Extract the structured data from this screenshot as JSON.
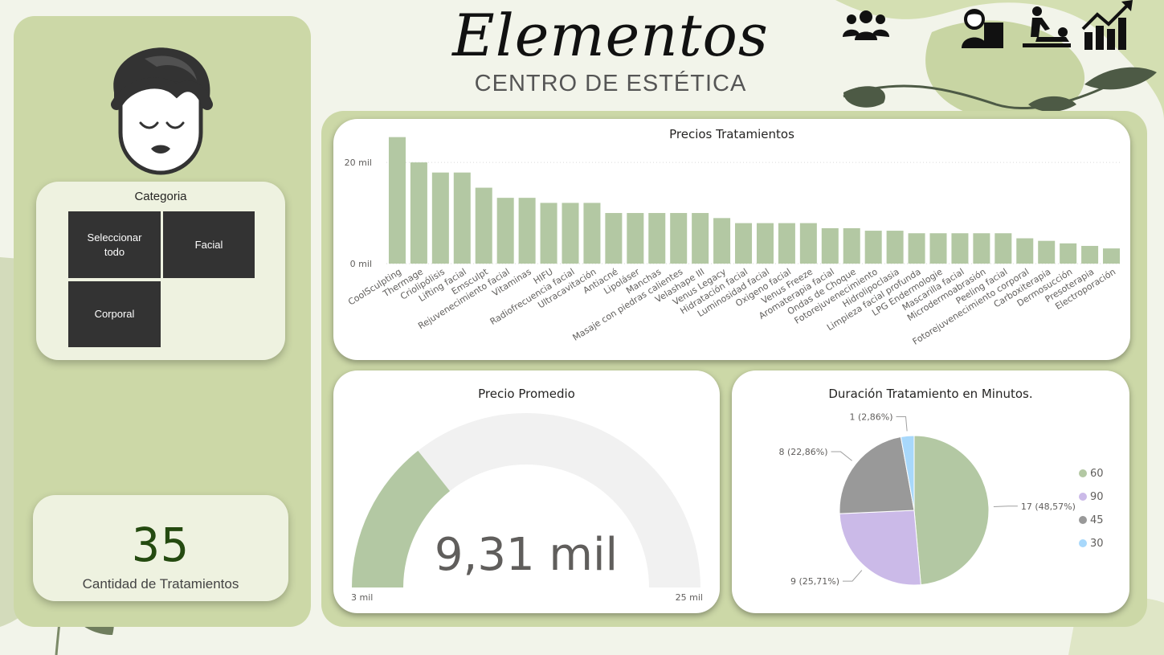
{
  "brand": {
    "name": "Elementos",
    "subtitle": "CENTRO DE ESTÉTICA"
  },
  "slicer": {
    "title": "Categoria",
    "options": [
      "Seleccionar todo",
      "Facial",
      "Corporal"
    ]
  },
  "kpi": {
    "value": "35",
    "label": "Cantidad de Tratamientos"
  },
  "icons": [
    "group-icon",
    "receptionist-icon",
    "massage-icon",
    "growth-chart-icon"
  ],
  "colors": {
    "panel": "#ccd8a7",
    "bar": "#b3c8a3",
    "dark_button": "#333333",
    "kpi_text": "#244a10"
  },
  "chart_data": [
    {
      "type": "bar",
      "title": "Precios Tratamientos",
      "categories": [
        "CoolSculpting",
        "Thermage",
        "Criolipólisis",
        "Lifting facial",
        "Emsculpt",
        "Rejuvenecimiento facial",
        "Vitaminas",
        "HIFU",
        "Radiofrecuencia facial",
        "Ultracavitación",
        "Antiacné",
        "Lipoláser",
        "Manchas",
        "Masaje con piedras calientes",
        "Velashape III",
        "Venus Legacy",
        "Hidratación facial",
        "Luminosidad facial",
        "Oxigeno facial",
        "Venus Freeze",
        "Aromaterapia facial",
        "Ondas de Choque",
        "Fotorejuvenecimiento",
        "Hidrolipoclasia",
        "Limpieza facial profunda",
        "LPG Endermologie",
        "Mascarilla facial",
        "Microdermoabrasión",
        "Peeling facial",
        "Fotorejuvenecimiento corporal",
        "Carboxiterapia",
        "Dermosucción",
        "Presoterapia",
        "Electroporación"
      ],
      "values": [
        25000,
        20000,
        18000,
        18000,
        15000,
        13000,
        13000,
        12000,
        12000,
        12000,
        10000,
        10000,
        10000,
        10000,
        10000,
        9000,
        8000,
        8000,
        8000,
        8000,
        7000,
        7000,
        6500,
        6500,
        6000,
        6000,
        6000,
        6000,
        6000,
        5000,
        4500,
        4000,
        3500,
        3000
      ],
      "y_ticks": [
        "0 mil",
        "20 mil"
      ],
      "y_tick_values": [
        0,
        20000
      ],
      "ylim": [
        0,
        27000
      ],
      "grid": true
    },
    {
      "type": "gauge",
      "title": "Precio Promedio",
      "value": 9310,
      "value_label": "9,31 mil",
      "min": 3000,
      "max": 25000,
      "min_label": "3 mil",
      "max_label": "25 mil"
    },
    {
      "type": "pie",
      "title": "Duración Tratamiento en Minutos.",
      "slices": [
        {
          "name": "60",
          "value": 17,
          "label": "17 (48,57%)",
          "color": "#b3c8a3"
        },
        {
          "name": "90",
          "value": 9,
          "label": "9 (25,71%)",
          "color": "#cbbae8"
        },
        {
          "name": "45",
          "value": 8,
          "label": "8 (22,86%)",
          "color": "#999999"
        },
        {
          "name": "30",
          "value": 1,
          "label": "1 (2,86%)",
          "color": "#a8d8fb"
        }
      ],
      "legend_position": "right"
    }
  ]
}
